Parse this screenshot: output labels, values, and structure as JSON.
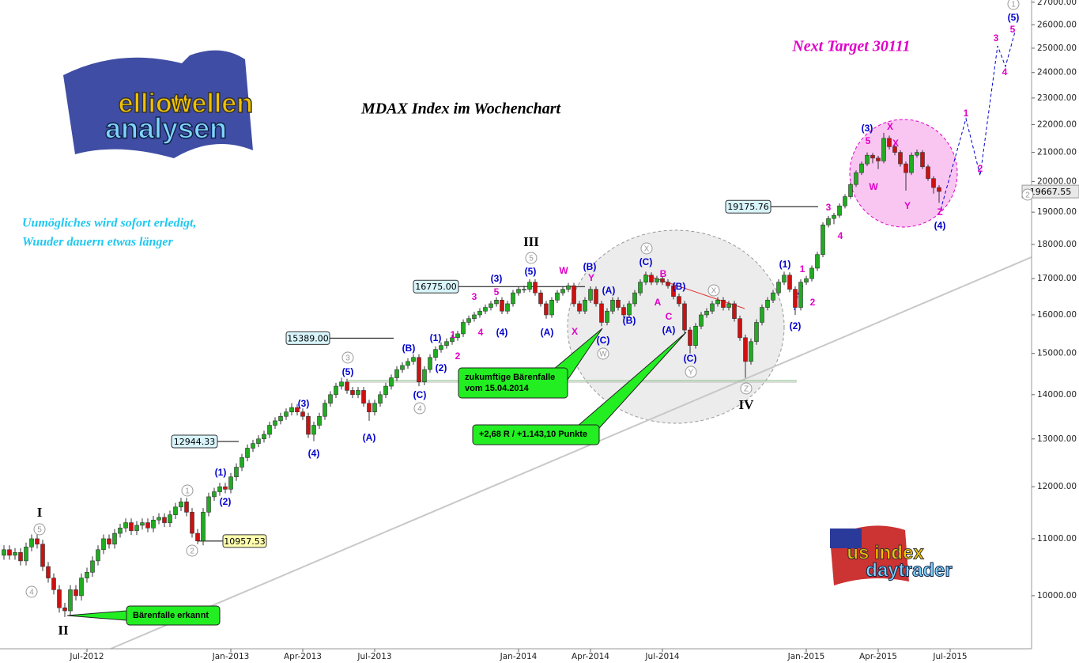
{
  "chart_data": {
    "type": "candlestick",
    "title": "MDAX Index im Wochenchart",
    "target_text": "Next Target 30111",
    "motto": [
      "Uumögliches wird sofort erledigt,",
      "Wuuder dauern etwas länger"
    ],
    "logos": [
      "elliott",
      "wellen",
      "analysen",
      "us index",
      "daytrader"
    ],
    "log_scale": true,
    "grid": false,
    "up_color": "#22aa22",
    "down_color": "#cc1111",
    "ylim": [
      9150,
      27100
    ],
    "yticks": [
      {
        "value": 10000,
        "label": "10000.00"
      },
      {
        "value": 11000,
        "label": "11000.00"
      },
      {
        "value": 12000,
        "label": "12000.00"
      },
      {
        "value": 13000,
        "label": "13000.00"
      },
      {
        "value": 14000,
        "label": "14000.00"
      },
      {
        "value": 15000,
        "label": "15000.00"
      },
      {
        "value": 16000,
        "label": "16000.00"
      },
      {
        "value": 17000,
        "label": "17000.00"
      },
      {
        "value": 18000,
        "label": "18000.00"
      },
      {
        "value": 19000,
        "label": "19000.00"
      },
      {
        "value": 20000,
        "label": "20000.00"
      },
      {
        "value": 21000,
        "label": "21000.00"
      },
      {
        "value": 22000,
        "label": "22000.00"
      },
      {
        "value": 23000,
        "label": "23000.00"
      },
      {
        "value": 24000,
        "label": "24000.00"
      },
      {
        "value": 25000,
        "label": "25000.00"
      },
      {
        "value": 26000,
        "label": "26000.00"
      },
      {
        "value": 27000,
        "label": "27000.00"
      }
    ],
    "categories": [
      null,
      null,
      null,
      null,
      null,
      null,
      null,
      null,
      null,
      null,
      null,
      null,
      null,
      null,
      null,
      "Jul-2012",
      null,
      null,
      null,
      null,
      null,
      null,
      null,
      null,
      null,
      null,
      null,
      null,
      null,
      null,
      null,
      null,
      null,
      null,
      null,
      null,
      null,
      null,
      null,
      null,
      null,
      "Jan-2013",
      null,
      null,
      null,
      null,
      null,
      null,
      null,
      null,
      null,
      null,
      null,
      null,
      "Apr-2013",
      null,
      null,
      null,
      null,
      null,
      null,
      null,
      null,
      null,
      null,
      null,
      null,
      "Jul-2013",
      null,
      null,
      null,
      null,
      null,
      null,
      null,
      null,
      null,
      null,
      null,
      null,
      null,
      null,
      null,
      null,
      null,
      null,
      null,
      null,
      null,
      null,
      null,
      null,
      null,
      "Jan-2014",
      null,
      null,
      null,
      null,
      null,
      null,
      null,
      null,
      null,
      null,
      null,
      null,
      "Apr-2014",
      null,
      null,
      null,
      null,
      null,
      null,
      null,
      null,
      null,
      null,
      null,
      null,
      "Jul-2014",
      null,
      null,
      null,
      null,
      null,
      null,
      null,
      null,
      null,
      null,
      null,
      null,
      null,
      null,
      null,
      null,
      null,
      null,
      null,
      null,
      null,
      null,
      null,
      null,
      null,
      "Jan-2015",
      null,
      null,
      null,
      null,
      null,
      null,
      null,
      null,
      null,
      null,
      null,
      null,
      "Apr-2015",
      null,
      null,
      null,
      null,
      null,
      null,
      null,
      null,
      null,
      null,
      null,
      null,
      "Jul-2015",
      null,
      null,
      null,
      null,
      null,
      null,
      null,
      null,
      null,
      null,
      null,
      null,
      null,
      null
    ],
    "candles": [
      [
        10700,
        10880,
        10620,
        10800
      ],
      [
        10800,
        10880,
        10620,
        10700
      ],
      [
        10700,
        10830,
        10620,
        10750
      ],
      [
        10750,
        10830,
        10520,
        10600
      ],
      [
        10600,
        10930,
        10520,
        10850
      ],
      [
        10850,
        11080,
        10770,
        11000
      ],
      [
        11000,
        11080,
        10820,
        10900
      ],
      [
        10900,
        10980,
        10420,
        10500
      ],
      [
        10500,
        10580,
        10220,
        10300
      ],
      [
        10300,
        10380,
        10020,
        10100
      ],
      [
        10100,
        10180,
        9720,
        9800
      ],
      [
        9800,
        9880,
        9650,
        9750
      ],
      [
        9750,
        10180,
        9670,
        10100
      ],
      [
        10100,
        10180,
        9920,
        10000
      ],
      [
        10000,
        10380,
        9920,
        10300
      ],
      [
        10300,
        10480,
        10220,
        10400
      ],
      [
        10400,
        10680,
        10320,
        10600
      ],
      [
        10600,
        10880,
        10520,
        10800
      ],
      [
        10800,
        11080,
        10720,
        11000
      ],
      [
        11000,
        11080,
        10820,
        10900
      ],
      [
        10900,
        11180,
        10820,
        11100
      ],
      [
        11100,
        11280,
        11020,
        11200
      ],
      [
        11200,
        11380,
        11120,
        11300
      ],
      [
        11300,
        11380,
        11070,
        11150
      ],
      [
        11150,
        11330,
        11070,
        11250
      ],
      [
        11250,
        11380,
        11170,
        11300
      ],
      [
        11300,
        11380,
        11120,
        11200
      ],
      [
        11200,
        11430,
        11120,
        11350
      ],
      [
        11350,
        11480,
        11270,
        11400
      ],
      [
        11400,
        11480,
        11220,
        11300
      ],
      [
        11300,
        11530,
        11220,
        11450
      ],
      [
        11450,
        11680,
        11370,
        11600
      ],
      [
        11600,
        11780,
        11520,
        11700
      ],
      [
        11700,
        11780,
        11420,
        11500
      ],
      [
        11500,
        11580,
        11020,
        11100
      ],
      [
        11100,
        11180,
        10900,
        10960
      ],
      [
        10960,
        11580,
        10880,
        11500
      ],
      [
        11500,
        11880,
        11420,
        11800
      ],
      [
        11800,
        11980,
        11720,
        11900
      ],
      [
        11900,
        12080,
        11820,
        12000
      ],
      [
        12000,
        12080,
        11870,
        11950
      ],
      [
        11950,
        12280,
        11870,
        12200
      ],
      [
        12200,
        12480,
        12120,
        12400
      ],
      [
        12400,
        12680,
        12320,
        12600
      ],
      [
        12600,
        12880,
        12520,
        12800
      ],
      [
        12800,
        12980,
        12720,
        12900
      ],
      [
        12900,
        13080,
        12820,
        13000
      ],
      [
        13000,
        13180,
        12920,
        13100
      ],
      [
        13100,
        13380,
        13020,
        13300
      ],
      [
        13300,
        13480,
        13220,
        13400
      ],
      [
        13400,
        13580,
        13320,
        13500
      ],
      [
        13500,
        13680,
        13420,
        13600
      ],
      [
        13600,
        13800,
        13520,
        13700
      ],
      [
        13700,
        13780,
        13520,
        13600
      ],
      [
        13600,
        13680,
        13420,
        13500
      ],
      [
        13500,
        13580,
        13020,
        13100
      ],
      [
        13100,
        13380,
        12950,
        13300
      ],
      [
        13300,
        13580,
        13220,
        13500
      ],
      [
        13500,
        13880,
        13420,
        13800
      ],
      [
        13800,
        14080,
        13720,
        14000
      ],
      [
        14000,
        14280,
        13920,
        14200
      ],
      [
        14200,
        14400,
        14120,
        14300
      ],
      [
        14300,
        14380,
        14020,
        14100
      ],
      [
        14100,
        14180,
        13920,
        14000
      ],
      [
        14000,
        14180,
        13920,
        14100
      ],
      [
        14100,
        14180,
        13720,
        13800
      ],
      [
        13800,
        13880,
        13400,
        13600
      ],
      [
        13600,
        13880,
        13520,
        13800
      ],
      [
        13800,
        14080,
        13720,
        14000
      ],
      [
        14000,
        14280,
        13920,
        14200
      ],
      [
        14200,
        14480,
        14120,
        14400
      ],
      [
        14400,
        14680,
        14320,
        14600
      ],
      [
        14600,
        14780,
        14520,
        14700
      ],
      [
        14700,
        14880,
        14620,
        14800
      ],
      [
        14800,
        14980,
        14720,
        14900
      ],
      [
        14900,
        14980,
        14200,
        14300
      ],
      [
        14300,
        14680,
        14220,
        14600
      ],
      [
        14600,
        14980,
        14520,
        14900
      ],
      [
        14900,
        15180,
        14820,
        15100
      ],
      [
        15100,
        15280,
        15020,
        15200
      ],
      [
        15200,
        15380,
        15120,
        15300
      ],
      [
        15300,
        15480,
        15220,
        15400
      ],
      [
        15400,
        15580,
        15320,
        15500
      ],
      [
        15500,
        15880,
        15420,
        15800
      ],
      [
        15800,
        15980,
        15720,
        15900
      ],
      [
        15900,
        16080,
        15820,
        16000
      ],
      [
        16000,
        16180,
        15920,
        16100
      ],
      [
        16100,
        16280,
        16020,
        16200
      ],
      [
        16200,
        16380,
        16120,
        16300
      ],
      [
        16300,
        16480,
        16220,
        16400
      ],
      [
        16400,
        16480,
        16020,
        16100
      ],
      [
        16100,
        16380,
        16020,
        16300
      ],
      [
        16300,
        16680,
        16220,
        16600
      ],
      [
        16600,
        16780,
        16520,
        16700
      ],
      [
        16700,
        16800,
        16600,
        16700
      ],
      [
        16700,
        16980,
        16620,
        16900
      ],
      [
        16900,
        16980,
        16520,
        16600
      ],
      [
        16600,
        16680,
        16220,
        16300
      ],
      [
        16300,
        16380,
        15900,
        16000
      ],
      [
        16000,
        16480,
        15920,
        16400
      ],
      [
        16400,
        16680,
        16320,
        16600
      ],
      [
        16600,
        16780,
        16520,
        16700
      ],
      [
        16700,
        16880,
        16620,
        16800
      ],
      [
        16800,
        16880,
        16220,
        16300
      ],
      [
        16300,
        16380,
        16020,
        16100
      ],
      [
        16100,
        16480,
        16020,
        16400
      ],
      [
        16400,
        16780,
        16320,
        16700
      ],
      [
        16700,
        16780,
        16220,
        16300
      ],
      [
        16300,
        16380,
        15700,
        15800
      ],
      [
        15800,
        16180,
        15720,
        16100
      ],
      [
        16100,
        16480,
        16020,
        16400
      ],
      [
        16400,
        16480,
        16120,
        16200
      ],
      [
        16200,
        16280,
        15920,
        16000
      ],
      [
        16000,
        16380,
        15920,
        16300
      ],
      [
        16300,
        16680,
        16220,
        16600
      ],
      [
        16600,
        16980,
        16520,
        16900
      ],
      [
        16900,
        17200,
        16820,
        17100
      ],
      [
        17100,
        17180,
        16820,
        16900
      ],
      [
        16900,
        17080,
        16820,
        17000
      ],
      [
        17000,
        17080,
        16820,
        16900
      ],
      [
        16900,
        16980,
        16720,
        16800
      ],
      [
        16800,
        16880,
        16420,
        16500
      ],
      [
        16500,
        16580,
        16220,
        16300
      ],
      [
        16300,
        16380,
        15520,
        15600
      ],
      [
        15600,
        15680,
        15000,
        15200
      ],
      [
        15200,
        15780,
        15120,
        15700
      ],
      [
        15700,
        16080,
        15620,
        16000
      ],
      [
        16000,
        16180,
        15920,
        16100
      ],
      [
        16100,
        16380,
        16020,
        16300
      ],
      [
        16300,
        16480,
        16220,
        16400
      ],
      [
        16400,
        16480,
        16120,
        16200
      ],
      [
        16200,
        16380,
        16120,
        16300
      ],
      [
        16300,
        16380,
        15820,
        15900
      ],
      [
        15900,
        15980,
        15320,
        15400
      ],
      [
        15400,
        15480,
        14400,
        14800
      ],
      [
        14800,
        15380,
        14720,
        15300
      ],
      [
        15300,
        15880,
        15220,
        15800
      ],
      [
        15800,
        16280,
        15720,
        16200
      ],
      [
        16200,
        16480,
        16120,
        16400
      ],
      [
        16400,
        16680,
        16320,
        16600
      ],
      [
        16600,
        16980,
        16520,
        16900
      ],
      [
        16900,
        17200,
        16820,
        17100
      ],
      [
        17100,
        17180,
        16620,
        16700
      ],
      [
        16700,
        16780,
        16000,
        16200
      ],
      [
        16200,
        16980,
        16120,
        16900
      ],
      [
        16900,
        17080,
        16820,
        17000
      ],
      [
        17000,
        17380,
        16920,
        17300
      ],
      [
        17300,
        17780,
        17220,
        17700
      ],
      [
        17700,
        18680,
        17620,
        18600
      ],
      [
        18600,
        18880,
        18520,
        18800
      ],
      [
        18800,
        18980,
        18620,
        18900
      ],
      [
        18900,
        19280,
        18820,
        19200
      ],
      [
        19200,
        19580,
        19120,
        19500
      ],
      [
        19500,
        19980,
        19420,
        19900
      ],
      [
        19900,
        20380,
        19820,
        20300
      ],
      [
        20300,
        20680,
        20220,
        20600
      ],
      [
        20600,
        21000,
        20520,
        20900
      ],
      [
        20900,
        20980,
        20620,
        20800
      ],
      [
        20800,
        20880,
        20420,
        20700
      ],
      [
        20700,
        21700,
        20620,
        21500
      ],
      [
        21500,
        21600,
        21100,
        21200
      ],
      [
        21200,
        21280,
        20900,
        21000
      ],
      [
        21000,
        21080,
        20500,
        20600
      ],
      [
        20600,
        20680,
        19700,
        20300
      ],
      [
        20300,
        21000,
        20220,
        20900
      ],
      [
        20900,
        21100,
        20820,
        21000
      ],
      [
        21000,
        21080,
        20420,
        20500
      ],
      [
        20500,
        20580,
        20020,
        20100
      ],
      [
        20100,
        20180,
        19600,
        19800
      ],
      [
        19800,
        19880,
        19300,
        19670
      ],
      null,
      null,
      null,
      null,
      null,
      null,
      null,
      null,
      null,
      null,
      null,
      null,
      null,
      null,
      null,
      null
    ],
    "price_boxes": [
      {
        "value": 16775,
        "label": "16775.00"
      },
      {
        "value": 15389,
        "label": "15389.00"
      },
      {
        "value": 12944.33,
        "label": "12944.33"
      },
      {
        "value": 10957.53,
        "label": "10957.53"
      },
      {
        "value": 19175.76,
        "label": "19175.76"
      }
    ],
    "last_price": {
      "value": 19667.55,
      "label": "19667.55"
    },
    "callouts": [
      [
        "Bärenfalle erkannt"
      ],
      [
        "zukumftige Bärenfalle",
        "vom 15.04.2014"
      ],
      [
        "+2,68 R / +1.143,10 Punkte"
      ]
    ],
    "annotations": {
      "blue": [
        "(5)",
        "(3)",
        "(4)",
        "(A)",
        "(B)",
        "(C)",
        "(2)",
        "(1)",
        "(4)",
        "(3)",
        "(5)",
        "(A)",
        "(B)",
        "(A)",
        "(B)",
        "(C)",
        "(C)",
        "(B)",
        "(A)",
        "(C)",
        "(1)",
        "(2)",
        "(3)",
        "(4)",
        "(5)",
        "(1)",
        "(2)"
      ],
      "magenta": [
        "3",
        "5",
        "4",
        "1",
        "2",
        "W",
        "Y",
        "X",
        "B",
        "A",
        "C",
        "1",
        "2",
        "3",
        "4",
        "5",
        "X",
        "W",
        "X",
        "Y",
        "Z",
        "1",
        "2",
        "3",
        "4",
        "5"
      ],
      "circled": [
        "5",
        "3",
        "4",
        "1",
        "2",
        "5",
        "4",
        "W",
        "X",
        "X",
        "Y",
        "Z",
        "1",
        "2"
      ],
      "roman": [
        "III",
        "IV",
        "I",
        "II"
      ]
    }
  }
}
